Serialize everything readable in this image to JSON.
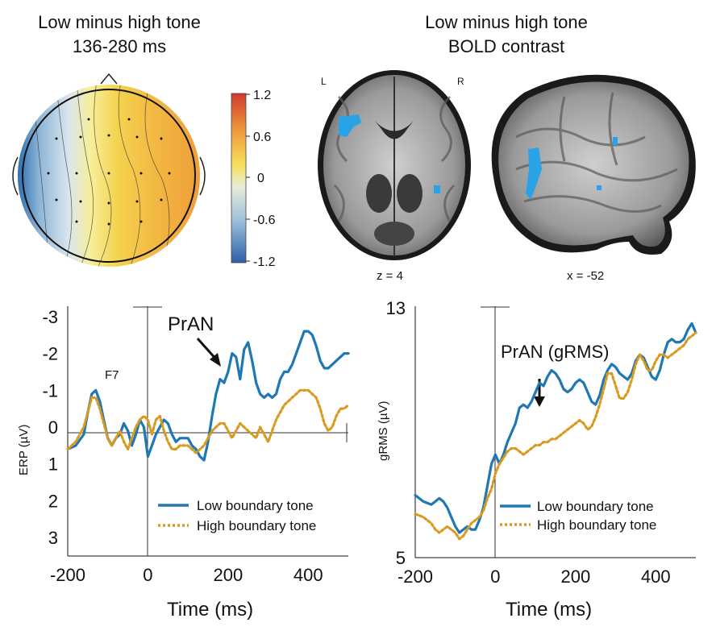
{
  "titles": {
    "topo_line1": "Low minus high tone",
    "topo_line2": "136-280 ms",
    "bold_line1": "Low minus high tone",
    "bold_line2": "BOLD contrast"
  },
  "colorbar": {
    "ticks": [
      "1.2",
      "0.6",
      "0",
      "-0.6",
      "-1.2"
    ]
  },
  "brain": {
    "left_label": "L",
    "right_label": "R",
    "axial_caption": "z = 4",
    "sagittal_caption": "x = -52"
  },
  "chart_data": [
    {
      "type": "line",
      "channel_label": "F7",
      "annotation": "PrAN",
      "ylabel": "ERP (µV)",
      "xlabel": "Time (ms)",
      "xlim": [
        -200,
        500
      ],
      "ylim": [
        3.5,
        -3.5
      ],
      "y_inverted": true,
      "xticks": [
        -200,
        0,
        200,
        400
      ],
      "yticks": [
        -3,
        -2,
        -1,
        0,
        1,
        2,
        3
      ],
      "x": [
        -200,
        -180,
        -160,
        -150,
        -140,
        -130,
        -120,
        -110,
        -100,
        -90,
        -80,
        -70,
        -60,
        -50,
        -40,
        -30,
        -20,
        -10,
        0,
        10,
        20,
        30,
        40,
        50,
        60,
        70,
        80,
        90,
        100,
        110,
        120,
        130,
        140,
        150,
        160,
        170,
        180,
        190,
        200,
        210,
        220,
        230,
        240,
        250,
        260,
        270,
        280,
        290,
        300,
        310,
        320,
        330,
        340,
        350,
        360,
        370,
        380,
        390,
        400,
        410,
        420,
        430,
        440,
        450,
        460,
        470,
        480,
        490,
        500
      ],
      "series": [
        {
          "name": "Low boundary tone",
          "color": "#1f77b4",
          "style": "solid",
          "values": [
            0.6,
            0.5,
            0.2,
            -0.4,
            -0.9,
            -1.0,
            -0.7,
            -0.2,
            0.3,
            0.5,
            0.3,
            0.2,
            -0.1,
            0.1,
            0.5,
            0.2,
            -0.2,
            0.0,
            0.8,
            0.5,
            0.2,
            0.0,
            -0.2,
            -0.1,
            0.2,
            0.4,
            0.3,
            0.3,
            0.3,
            0.5,
            0.6,
            0.8,
            0.9,
            0.4,
            -0.3,
            -0.9,
            -1.3,
            -1.2,
            -1.5,
            -2.0,
            -1.9,
            -1.3,
            -2.1,
            -2.3,
            -1.8,
            -1.2,
            -0.9,
            -0.8,
            -0.9,
            -0.8,
            -0.9,
            -1.3,
            -1.5,
            -1.5,
            -1.7,
            -2.0,
            -2.3,
            -2.6,
            -2.6,
            -2.5,
            -2.2,
            -1.8,
            -1.6,
            -1.6,
            -1.7,
            -1.8,
            -1.9,
            -2.0,
            -2.0
          ]
        },
        {
          "name": "High boundary tone",
          "color": "#d99a1f",
          "style": "dotted",
          "values": [
            0.6,
            0.4,
            0.0,
            -0.4,
            -0.8,
            -0.8,
            -0.5,
            -0.1,
            0.3,
            0.5,
            0.3,
            0.1,
            0.4,
            0.6,
            0.3,
            0.0,
            -0.2,
            -0.3,
            -0.2,
            0.2,
            -0.2,
            -0.3,
            0.1,
            0.4,
            0.6,
            0.6,
            0.5,
            0.5,
            0.5,
            0.6,
            0.7,
            0.6,
            0.5,
            0.3,
            0.1,
            0.0,
            -0.1,
            -0.1,
            0.1,
            0.3,
            0.1,
            -0.1,
            0.0,
            0.1,
            0.2,
            0.3,
            0.0,
            0.2,
            0.4,
            0.1,
            -0.2,
            -0.4,
            -0.6,
            -0.7,
            -0.8,
            -0.9,
            -1.0,
            -1.0,
            -1.0,
            -0.9,
            -0.8,
            -0.5,
            -0.1,
            0.1,
            0.0,
            -0.3,
            -0.5,
            -0.5,
            -0.6
          ]
        }
      ]
    },
    {
      "type": "line",
      "annotation": "PrAN (gRMS)",
      "ylabel": "gRMS (µV)",
      "xlabel": "Time (ms)",
      "xlim": [
        -200,
        500
      ],
      "ylim": [
        5,
        13
      ],
      "xticks": [
        -200,
        0,
        200,
        400
      ],
      "yticks": [
        5,
        13
      ],
      "x": [
        -200,
        -180,
        -160,
        -150,
        -140,
        -130,
        -120,
        -110,
        -100,
        -90,
        -80,
        -70,
        -60,
        -50,
        -40,
        -30,
        -20,
        -10,
        0,
        10,
        20,
        30,
        40,
        50,
        60,
        70,
        80,
        90,
        100,
        110,
        120,
        130,
        140,
        150,
        160,
        170,
        180,
        190,
        200,
        210,
        220,
        230,
        240,
        250,
        260,
        270,
        280,
        290,
        300,
        310,
        320,
        330,
        340,
        350,
        360,
        370,
        380,
        390,
        400,
        410,
        420,
        430,
        440,
        450,
        460,
        470,
        480,
        490,
        500
      ],
      "series": [
        {
          "name": "Low boundary tone",
          "color": "#1f77b4",
          "style": "solid",
          "values": [
            7.0,
            6.8,
            6.7,
            6.8,
            6.9,
            6.8,
            6.6,
            6.3,
            6.0,
            5.8,
            5.9,
            6.0,
            5.9,
            5.9,
            6.2,
            6.6,
            7.3,
            8.0,
            8.3,
            8.0,
            8.3,
            8.7,
            9.0,
            9.3,
            9.8,
            9.9,
            9.8,
            10.0,
            10.3,
            10.6,
            10.5,
            10.8,
            11.0,
            10.9,
            10.7,
            10.4,
            10.3,
            10.4,
            10.6,
            10.7,
            10.6,
            10.3,
            10.0,
            9.9,
            10.2,
            10.7,
            11.0,
            11.2,
            11.1,
            10.9,
            10.8,
            10.7,
            10.9,
            11.3,
            11.5,
            11.4,
            11.1,
            10.8,
            10.7,
            11.0,
            11.5,
            11.9,
            12.0,
            11.9,
            11.9,
            12.0,
            12.3,
            12.5,
            12.2
          ]
        },
        {
          "name": "High boundary tone",
          "color": "#d99a1f",
          "style": "dotted",
          "values": [
            6.4,
            6.3,
            6.1,
            5.9,
            5.8,
            5.9,
            6.0,
            5.9,
            5.8,
            5.6,
            5.7,
            5.9,
            6.1,
            6.2,
            6.3,
            6.5,
            6.9,
            7.2,
            7.7,
            8.0,
            8.2,
            8.4,
            8.5,
            8.5,
            8.4,
            8.3,
            8.4,
            8.5,
            8.6,
            8.6,
            8.7,
            8.7,
            8.8,
            8.8,
            8.9,
            9.0,
            9.1,
            9.2,
            9.3,
            9.4,
            9.3,
            9.1,
            9.2,
            9.5,
            9.9,
            10.4,
            10.9,
            10.9,
            10.5,
            10.1,
            10.1,
            10.3,
            10.7,
            11.2,
            11.5,
            11.3,
            11.0,
            11.0,
            11.3,
            11.5,
            11.5,
            11.4,
            11.5,
            11.6,
            11.7,
            11.8,
            12.0,
            12.1,
            12.2
          ]
        }
      ]
    }
  ]
}
